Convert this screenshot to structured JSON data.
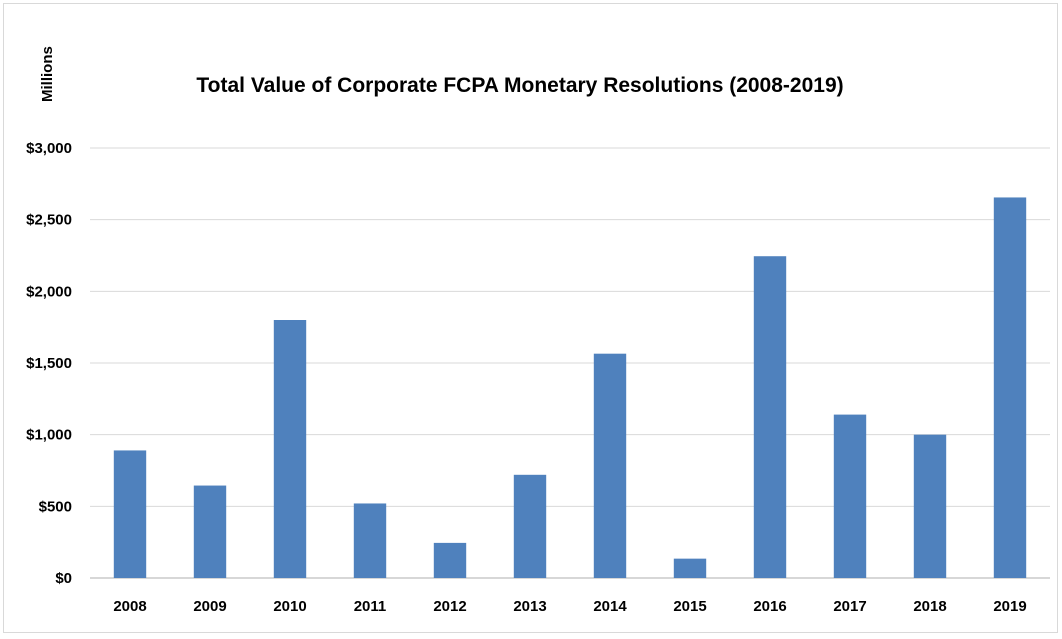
{
  "chart_data": {
    "type": "bar",
    "title": "Total Value of Corporate FCPA Monetary Resolutions (2008-2019)",
    "ylabel": "Millions",
    "xlabel": "",
    "categories": [
      "2008",
      "2009",
      "2010",
      "2011",
      "2012",
      "2013",
      "2014",
      "2015",
      "2016",
      "2017",
      "2018",
      "2019"
    ],
    "values": [
      890,
      645,
      1800,
      520,
      245,
      720,
      1565,
      135,
      2245,
      1140,
      1000,
      2655
    ],
    "ylim": [
      0,
      3000
    ],
    "yticks": [
      0,
      500,
      1000,
      1500,
      2000,
      2500,
      3000
    ],
    "ytick_labels": [
      "$0",
      "$500",
      "$1,000",
      "$1,500",
      "$2,000",
      "$2,500",
      "$3,000"
    ],
    "grid": true,
    "legend": "none",
    "bar_color": "#4f81bd"
  }
}
